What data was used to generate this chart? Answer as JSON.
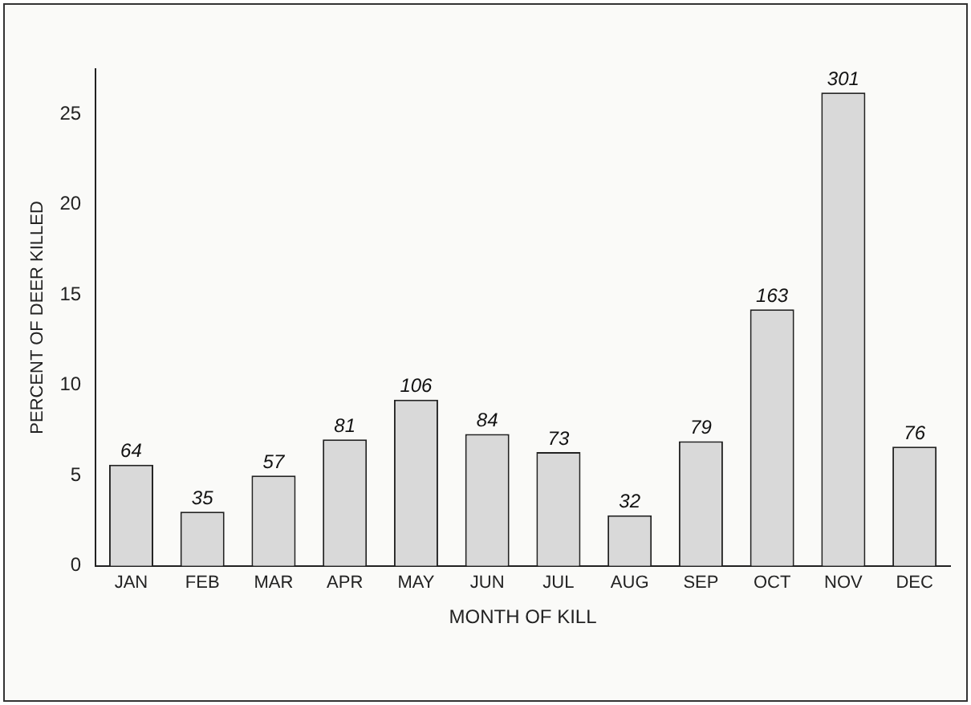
{
  "chart_data": {
    "type": "bar",
    "xlabel": "MONTH OF KILL",
    "ylabel": "PERCENT OF DEER KILLED",
    "categories": [
      "JAN",
      "FEB",
      "MAR",
      "APR",
      "MAY",
      "JUN",
      "JUL",
      "AUG",
      "SEP",
      "OCT",
      "NOV",
      "DEC"
    ],
    "values": [
      5.6,
      3.0,
      5.0,
      7.0,
      9.2,
      7.3,
      6.3,
      2.8,
      6.9,
      14.2,
      26.2,
      6.6
    ],
    "annotations": [
      {
        "text": "64",
        "x": "JAN",
        "y": 5.6
      },
      {
        "text": "35",
        "x": "FEB",
        "y": 3.0
      },
      {
        "text": "57",
        "x": "MAR",
        "y": 5.0
      },
      {
        "text": "81",
        "x": "APR",
        "y": 7.0
      },
      {
        "text": "106",
        "x": "MAY",
        "y": 9.2
      },
      {
        "text": "84",
        "x": "JUN",
        "y": 7.3
      },
      {
        "text": "73",
        "x": "JUL",
        "y": 6.3
      },
      {
        "text": "32",
        "x": "AUG",
        "y": 2.8
      },
      {
        "text": "79",
        "x": "SEP",
        "y": 6.9
      },
      {
        "text": "163",
        "x": "OCT",
        "y": 14.2
      },
      {
        "text": "301",
        "x": "NOV",
        "y": 26.2
      },
      {
        "text": "76",
        "x": "DEC",
        "y": 6.6
      }
    ],
    "color": "#d9d9d9",
    "ylim": [
      0,
      27.5
    ],
    "yticks": [
      0,
      5,
      10,
      15,
      20,
      25
    ],
    "grid": false,
    "legend": false
  }
}
